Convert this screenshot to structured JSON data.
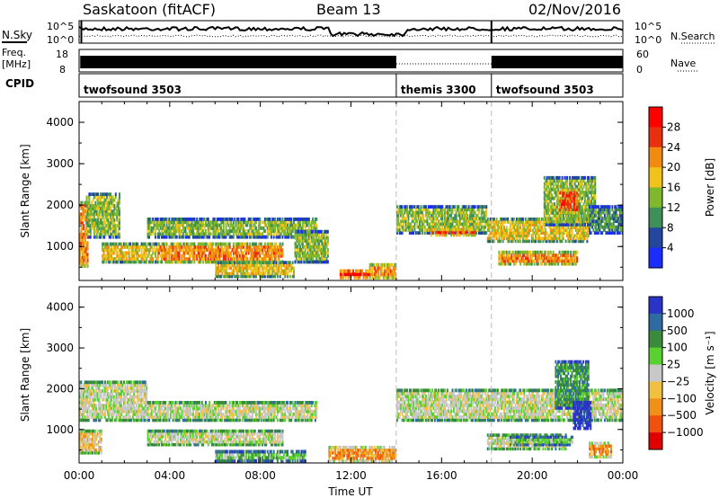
{
  "header": {
    "station": "Saskatoon (fitACF)",
    "beam": "Beam 13",
    "date": "02/Nov/2016"
  },
  "left_labels": {
    "nsky": "N.Sky",
    "freq": "Freq.",
    "freq_unit": "[MHz]",
    "cpid": "CPID"
  },
  "right_labels": {
    "nsearch": "N.Search",
    "nave": "Nave"
  },
  "noise_axis": {
    "top": "10^5",
    "bottom": "10^0"
  },
  "freq_axis": {
    "left_top": "18",
    "left_bottom": "8",
    "right_top": "60",
    "right_bottom": "0"
  },
  "cpid_segments": [
    {
      "label": "twofsound 3503",
      "start_hour": 0
    },
    {
      "label": "themis 3300",
      "start_hour": 14
    },
    {
      "label": "twofsound 3503",
      "start_hour": 18.2
    }
  ],
  "chart_data": [
    {
      "type": "heatmap",
      "name": "power",
      "ylabel": "Slant Range [km]",
      "ylim": [
        180,
        4500
      ],
      "yticks": [
        "1000",
        "2000",
        "3000",
        "4000"
      ],
      "colorbar_label": "Power [dB]",
      "colorbar_ticks": [
        "4",
        "8",
        "12",
        "16",
        "20",
        "24",
        "28"
      ],
      "colors": [
        "#1a2dff",
        "#23479d",
        "#3e8f5a",
        "#7fb72d",
        "#f0c21a",
        "#f08a10",
        "#e8300f",
        "#ff0000"
      ],
      "blobs": [
        {
          "h0": 0.0,
          "h1": 0.4,
          "r0": 500,
          "r1": 2100,
          "level": 5
        },
        {
          "h0": 0.3,
          "h1": 1.8,
          "r0": 1200,
          "r1": 2300,
          "level": 3
        },
        {
          "h0": 1.0,
          "h1": 3.5,
          "r0": 600,
          "r1": 1100,
          "level": 4
        },
        {
          "h0": 3.0,
          "h1": 10.5,
          "r0": 1200,
          "r1": 1700,
          "level": 3
        },
        {
          "h0": 3.5,
          "h1": 9.0,
          "r0": 600,
          "r1": 1100,
          "level": 5
        },
        {
          "h0": 6.0,
          "h1": 9.5,
          "r0": 250,
          "r1": 650,
          "level": 4
        },
        {
          "h0": 9.5,
          "h1": 11.0,
          "r0": 600,
          "r1": 1400,
          "level": 3
        },
        {
          "h0": 11.5,
          "h1": 12.8,
          "r0": 220,
          "r1": 450,
          "level": 7
        },
        {
          "h0": 12.8,
          "h1": 14.0,
          "r0": 220,
          "r1": 600,
          "level": 5
        },
        {
          "h0": 14.0,
          "h1": 18.0,
          "r0": 1300,
          "r1": 2000,
          "level": 3
        },
        {
          "h0": 15.5,
          "h1": 17.5,
          "r0": 1250,
          "r1": 1450,
          "level": 6
        },
        {
          "h0": 18.0,
          "h1": 22.5,
          "r0": 1100,
          "r1": 1700,
          "level": 4
        },
        {
          "h0": 18.5,
          "h1": 22.0,
          "r0": 550,
          "r1": 900,
          "level": 5
        },
        {
          "h0": 20.5,
          "h1": 22.8,
          "r0": 1500,
          "r1": 2700,
          "level": 3
        },
        {
          "h0": 21.2,
          "h1": 22.0,
          "r0": 1800,
          "r1": 2400,
          "level": 6
        },
        {
          "h0": 22.5,
          "h1": 24.0,
          "r0": 1300,
          "r1": 2000,
          "level": 2
        }
      ]
    },
    {
      "type": "heatmap",
      "name": "velocity",
      "ylabel": "Slant Range [km]",
      "ylim": [
        180,
        4500
      ],
      "yticks": [
        "1000",
        "2000",
        "3000",
        "4000"
      ],
      "colorbar_label": "Velocity [m s⁻¹]",
      "colorbar_ticks": [
        "1000",
        "500",
        "100",
        "25",
        "−25",
        "−100",
        "−500",
        "−1000"
      ],
      "colors": [
        "#2a34c8",
        "#2f6aa0",
        "#3a8c3a",
        "#58d030",
        "#c8c8c8",
        "#f0c040",
        "#f09018",
        "#f05010",
        "#e00000"
      ],
      "blobs": [
        {
          "h0": 0.0,
          "h1": 3.0,
          "r0": 1200,
          "r1": 2200,
          "level": 4
        },
        {
          "h0": 0.0,
          "h1": 1.0,
          "r0": 400,
          "r1": 1000,
          "level": 5
        },
        {
          "h0": 3.0,
          "h1": 10.5,
          "r0": 1200,
          "r1": 1700,
          "level": 4
        },
        {
          "h0": 3.0,
          "h1": 9.0,
          "r0": 600,
          "r1": 1000,
          "level": 4
        },
        {
          "h0": 6.0,
          "h1": 10.0,
          "r0": 200,
          "r1": 500,
          "level": 3
        },
        {
          "h0": 11.0,
          "h1": 14.0,
          "r0": 200,
          "r1": 600,
          "level": 6
        },
        {
          "h0": 14.0,
          "h1": 24.0,
          "r0": 1200,
          "r1": 2000,
          "level": 4
        },
        {
          "h0": 18.0,
          "h1": 21.5,
          "r0": 500,
          "r1": 900,
          "level": 4
        },
        {
          "h0": 19.0,
          "h1": 21.8,
          "r0": 600,
          "r1": 850,
          "level": 3
        },
        {
          "h0": 21.0,
          "h1": 22.5,
          "r0": 1500,
          "r1": 2700,
          "level": 2
        },
        {
          "h0": 21.8,
          "h1": 22.6,
          "r0": 1000,
          "r1": 1700,
          "level": 0
        },
        {
          "h0": 22.5,
          "h1": 23.5,
          "r0": 300,
          "r1": 700,
          "level": 6
        }
      ]
    }
  ],
  "x_axis": {
    "label": "Time UT",
    "ticks": [
      "00:00",
      "04:00",
      "08:00",
      "12:00",
      "16:00",
      "20:00",
      "00:00"
    ]
  }
}
